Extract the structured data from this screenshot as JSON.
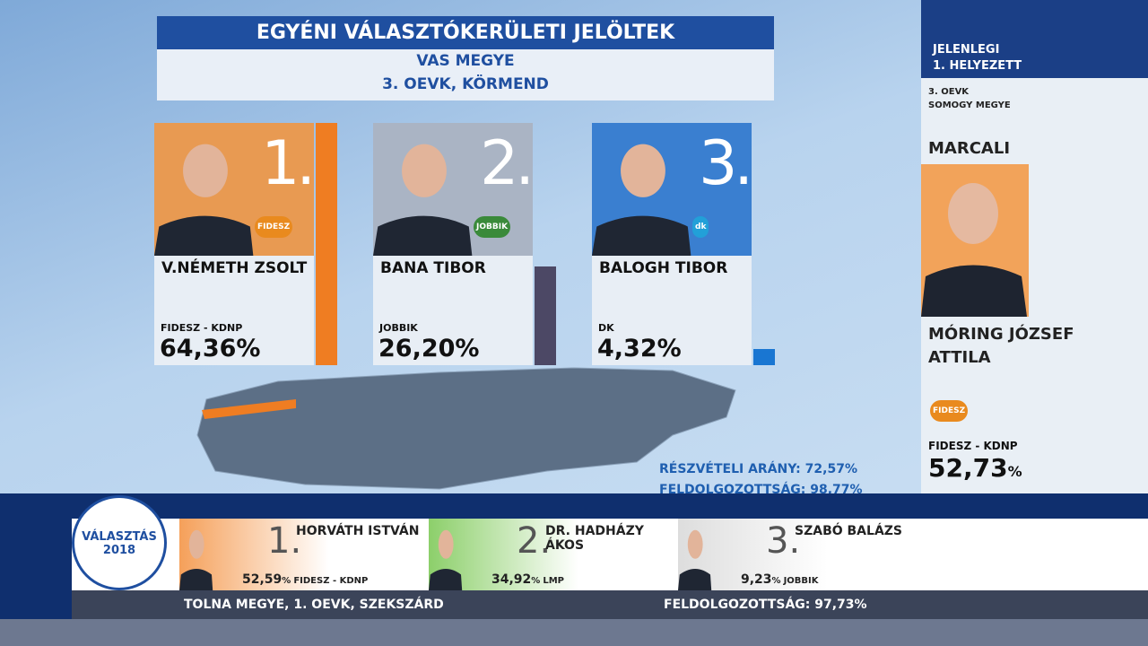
{
  "header": {
    "title": "EGYÉNI VÁLASZTÓKERÜLETI JELÖLTEK",
    "county": "VAS MEGYE",
    "district": "3. OEVK, KÖRMEND"
  },
  "candidates": [
    {
      "rank": "1.",
      "name": "V.NÉMETH ZSOLT",
      "party": "FIDESZ - KDNP",
      "logo": "FIDESZ",
      "result": {
        "value": 64.36,
        "label": "64,36%"
      }
    },
    {
      "rank": "2.",
      "name": "BANA TIBOR",
      "party": "JOBBIK",
      "logo": "JOBBIK",
      "result": {
        "value": 26.2,
        "label": "26,20%"
      }
    },
    {
      "rank": "3.",
      "name": "BALOGH TIBOR",
      "party": "DK",
      "logo": "dk",
      "result": {
        "value": 4.32,
        "label": "4,32%"
      }
    }
  ],
  "turnout": {
    "participation": "RÉSZVÉTELI ARÁNY: 72,57%",
    "processed": "FELDOLGOZOTTSÁG: 98,77%"
  },
  "side": {
    "heading1": "JELENLEGI",
    "heading2": "1. HELYEZETT",
    "district": "3. OEVK",
    "county": "SOMOGY MEGYE",
    "town": "MARCALI",
    "name1": "MÓRING JÓZSEF",
    "name2": "ATTILA",
    "logo": "FIDESZ",
    "party": "FIDESZ - KDNP",
    "result": "52,73",
    "unit": "%"
  },
  "brand": {
    "line1": "VÁLASZTÁS",
    "line2": "2018"
  },
  "ticker": {
    "entries": [
      {
        "rank": "1.",
        "name": "HORVÁTH ISTVÁN",
        "result": "52,59",
        "unit": "%",
        "party": "FIDESZ - KDNP"
      },
      {
        "rank": "2.",
        "name": "DR. HADHÁZY ÁKOS",
        "result": "34,92",
        "unit": "%",
        "party": "LMP"
      },
      {
        "rank": "3.",
        "name": "SZABÓ BALÁZS",
        "result": "9,23",
        "unit": "%",
        "party": "JOBBIK"
      }
    ],
    "location": "TOLNA MEGYE, 1. OEVK, SZEKSZÁRD",
    "processed": "FELDOLGOZOTTSÁG: 97,73%"
  }
}
